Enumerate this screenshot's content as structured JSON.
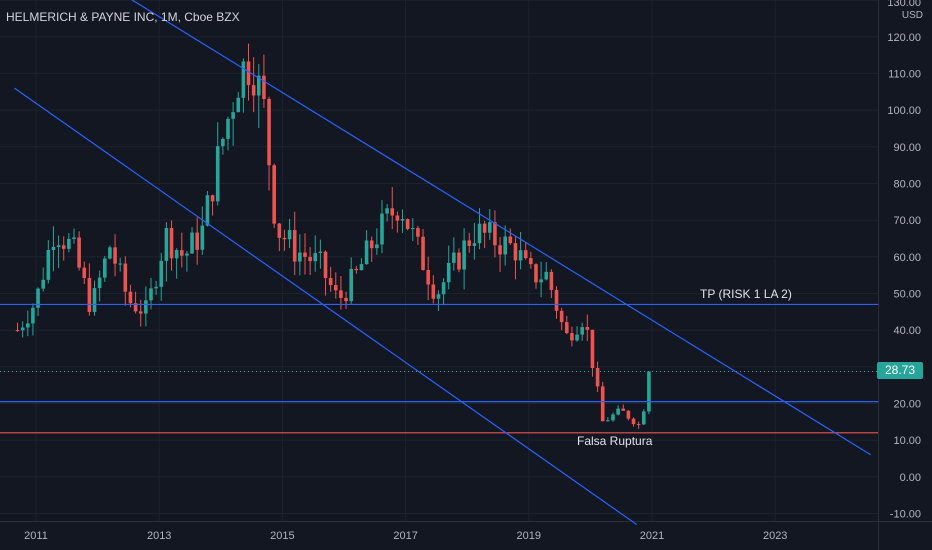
{
  "chart_title": "HELMERICH & PAYNE INC, 1M, Cboe BZX",
  "axis_unit": "USD",
  "current_price_label": "28.73",
  "annotations": {
    "tp_label": "TP (RISK 1 LA 2)",
    "fake_breakout_label": "Falsa Ruptura"
  },
  "colors": {
    "background": "#131722",
    "up": "#26a69a",
    "down": "#ef5350",
    "trendline": "#2962ff",
    "text": "#b2b5be"
  },
  "chart_data": {
    "type": "candlestick",
    "title": "HELMERICH & PAYNE INC, 1M, Cboe BZX",
    "xlabel": "",
    "ylabel": "USD",
    "xlim": [
      2010.65,
      2024.55
    ],
    "ylim": [
      -12,
      131
    ],
    "x_ticks": [
      "2011",
      "2013",
      "2015",
      "2017",
      "2019",
      "2021",
      "2023"
    ],
    "y_ticks": [
      -10,
      0,
      10,
      20,
      30,
      40,
      50,
      60,
      70,
      80,
      90,
      100,
      110,
      120,
      130
    ],
    "y_tick_labels": [
      "-10.00",
      "0.00",
      "10.00",
      "20.00",
      "30.00",
      "40.00",
      "50.00",
      "60.00",
      "70.00",
      "80.00",
      "90.00",
      "100.00",
      "110.00",
      "120.00",
      "130.00"
    ],
    "last_price": 28.73,
    "close_series": [
      {
        "x": 2010.7,
        "close": 40
      },
      {
        "x": 2011.0,
        "close": 48
      },
      {
        "x": 2011.3,
        "close": 68
      },
      {
        "x": 2011.6,
        "close": 62
      },
      {
        "x": 2011.9,
        "close": 46
      },
      {
        "x": 2012.2,
        "close": 63
      },
      {
        "x": 2012.5,
        "close": 48
      },
      {
        "x": 2012.8,
        "close": 45
      },
      {
        "x": 2013.1,
        "close": 66
      },
      {
        "x": 2013.4,
        "close": 60
      },
      {
        "x": 2013.7,
        "close": 67
      },
      {
        "x": 2014.0,
        "close": 90
      },
      {
        "x": 2014.3,
        "close": 110
      },
      {
        "x": 2014.5,
        "close": 114
      },
      {
        "x": 2014.7,
        "close": 100
      },
      {
        "x": 2014.9,
        "close": 68
      },
      {
        "x": 2015.2,
        "close": 62
      },
      {
        "x": 2015.6,
        "close": 58
      },
      {
        "x": 2015.9,
        "close": 48
      },
      {
        "x": 2016.2,
        "close": 55
      },
      {
        "x": 2016.5,
        "close": 65
      },
      {
        "x": 2016.9,
        "close": 75
      },
      {
        "x": 2017.2,
        "close": 62
      },
      {
        "x": 2017.5,
        "close": 50
      },
      {
        "x": 2017.8,
        "close": 58
      },
      {
        "x": 2018.1,
        "close": 67
      },
      {
        "x": 2018.4,
        "close": 65
      },
      {
        "x": 2018.8,
        "close": 62
      },
      {
        "x": 2019.0,
        "close": 55
      },
      {
        "x": 2019.3,
        "close": 55
      },
      {
        "x": 2019.6,
        "close": 38
      },
      {
        "x": 2019.9,
        "close": 44
      },
      {
        "x": 2020.2,
        "close": 15
      },
      {
        "x": 2020.5,
        "close": 18
      },
      {
        "x": 2020.8,
        "close": 14
      },
      {
        "x": 2021.0,
        "close": 28.73
      }
    ],
    "horizontal_levels": [
      {
        "price": 47,
        "label": "TP (RISK 1 LA 2)"
      },
      {
        "price": 20.5
      },
      {
        "price": 12,
        "label": "Falsa Ruptura"
      }
    ],
    "trendlines": [
      {
        "from": [
          2011.5,
          141
        ],
        "to": [
          2024.55,
          6
        ]
      },
      {
        "from": [
          2010.65,
          106
        ],
        "to": [
          2020.75,
          -13
        ]
      }
    ],
    "grid": true,
    "legend": "none"
  }
}
